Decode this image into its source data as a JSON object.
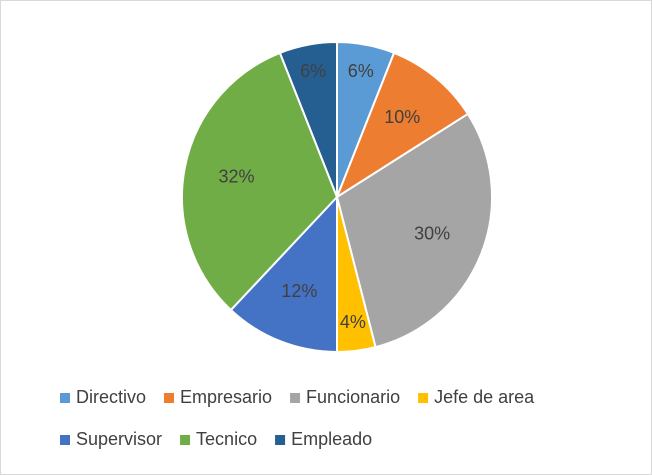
{
  "chart_data": {
    "type": "pie",
    "categories": [
      "Directivo",
      "Empresario",
      "Funcionario",
      "Jefe de area",
      "Supervisor",
      "Tecnico",
      "Empleado"
    ],
    "values": [
      6,
      10,
      30,
      4,
      12,
      32,
      6
    ],
    "value_labels": [
      "6%",
      "10%",
      "30%",
      "4%",
      "12%",
      "32%",
      "6%"
    ],
    "colors": [
      "#5b9bd5",
      "#ed7d31",
      "#a5a5a5",
      "#ffc000",
      "#4472c4",
      "#70ad47",
      "#255e91"
    ],
    "legend": "bottom"
  }
}
